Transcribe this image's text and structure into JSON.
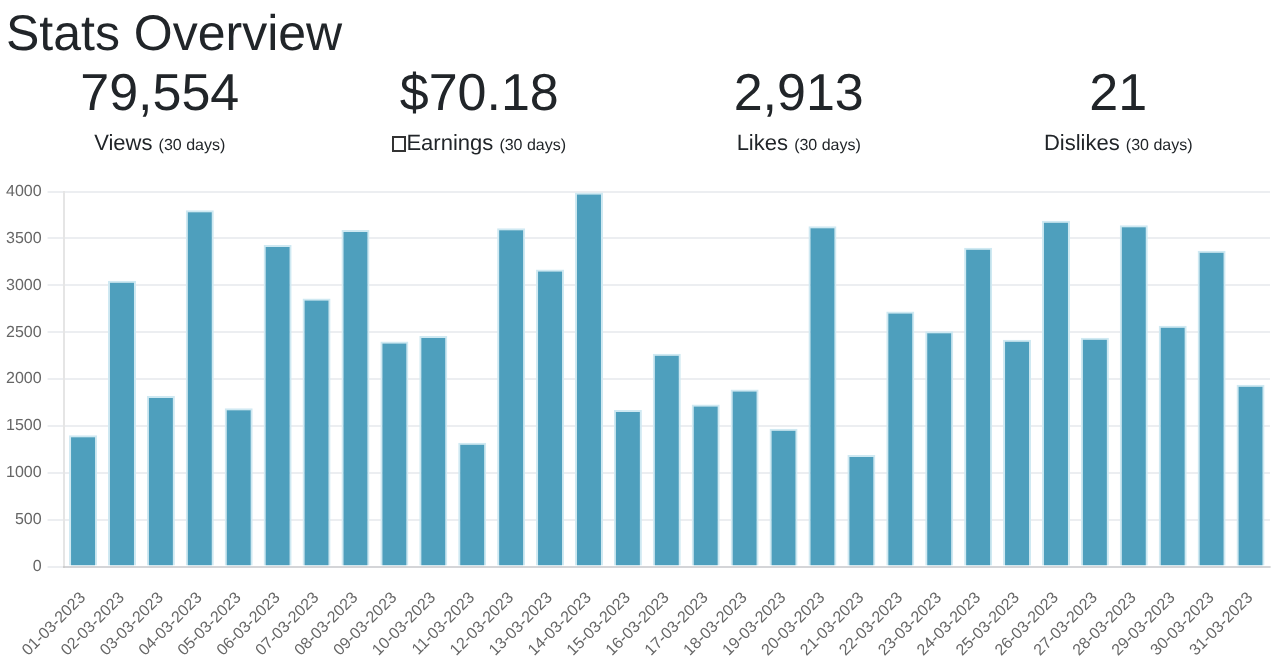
{
  "chart_data": [
    {
      "type": "other",
      "title": "Stats Overview",
      "annotations": [
        "79,554",
        "Views",
        "(30 days)",
        "$70.18",
        "Earnings",
        "(30 days)",
        "2,913",
        "Likes",
        "(30 days)",
        "21",
        "Dislikes",
        "(30 days)"
      ]
    },
    {
      "type": "bar",
      "categories": [
        "01-03-2023",
        "02-03-2023",
        "03-03-2023",
        "04-03-2023",
        "05-03-2023",
        "06-03-2023",
        "07-03-2023",
        "08-03-2023",
        "09-03-2023",
        "10-03-2023",
        "11-03-2023",
        "12-03-2023",
        "13-03-2023",
        "14-03-2023",
        "15-03-2023",
        "16-03-2023",
        "17-03-2023",
        "18-03-2023",
        "19-03-2023",
        "20-03-2023",
        "21-03-2023",
        "22-03-2023",
        "23-03-2023",
        "24-03-2023",
        "25-03-2023",
        "26-03-2023",
        "27-03-2023",
        "28-03-2023",
        "29-03-2023",
        "30-03-2023",
        "31-03-2023"
      ],
      "values": [
        1400,
        3050,
        1820,
        3800,
        1690,
        3430,
        2860,
        3590,
        2400,
        2460,
        1320,
        3610,
        3170,
        3990,
        1670,
        2270,
        1730,
        1890,
        1470,
        3630,
        1190,
        2720,
        2510,
        3400,
        2420,
        3690,
        2440,
        3640,
        2570,
        3370,
        1940
      ],
      "color": "#4e9fbd",
      "ylim": [
        0,
        4000
      ],
      "yticks": [
        0,
        500,
        1000,
        1500,
        2000,
        2500,
        3000,
        3500,
        4000
      ],
      "grid": "y",
      "legend": false
    }
  ]
}
